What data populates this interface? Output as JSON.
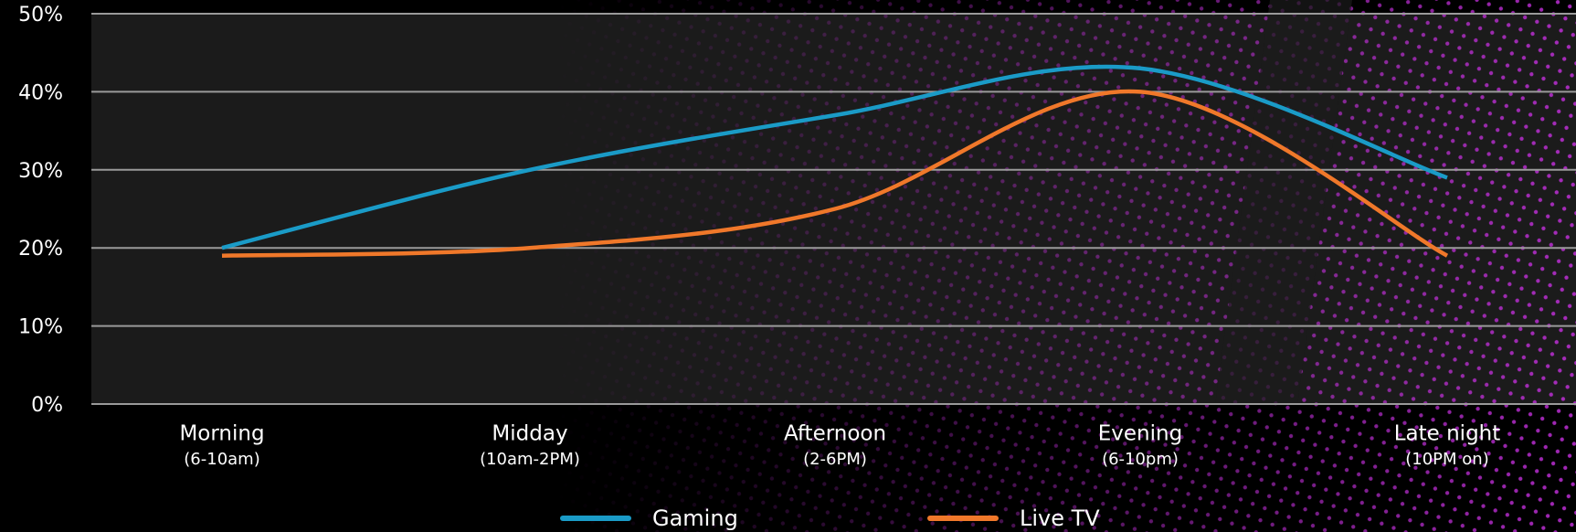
{
  "chart_data": {
    "type": "line",
    "categories": [
      "Morning",
      "Midday",
      "Afternoon",
      "Evening",
      "Late night"
    ],
    "category_notes": [
      "(6-10am)",
      "(10am-2PM)",
      "(2-6PM)",
      "(6-10pm)",
      "(10PM on)"
    ],
    "series": [
      {
        "name": "Gaming",
        "color": "#1a9bc7",
        "values": [
          20,
          30,
          37,
          43,
          29
        ]
      },
      {
        "name": "Live TV",
        "color": "#f0782a",
        "values": [
          19,
          20,
          25,
          40,
          19
        ]
      }
    ],
    "ylim": [
      0,
      50
    ],
    "yticks": [
      {
        "value": 0,
        "label": "0%"
      },
      {
        "value": 10,
        "label": "10%"
      },
      {
        "value": 20,
        "label": "20%"
      },
      {
        "value": 30,
        "label": "30%"
      },
      {
        "value": 40,
        "label": "40%"
      },
      {
        "value": 50,
        "label": "50%"
      }
    ],
    "grid": true
  }
}
